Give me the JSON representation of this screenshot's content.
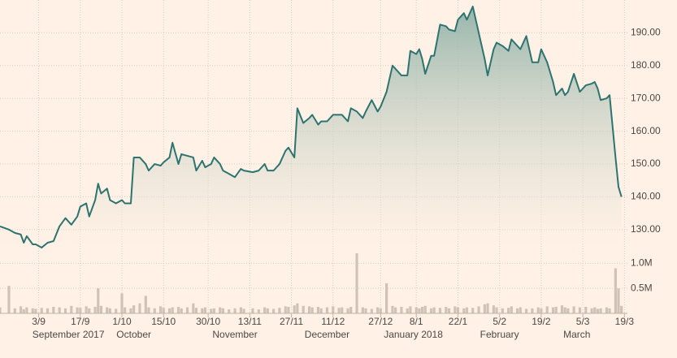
{
  "chart_data": {
    "type": "line",
    "x": [
      "2017-08-21",
      "2017-08-24",
      "2017-08-26",
      "2017-08-28",
      "2017-08-29",
      "2017-08-30",
      "2017-09-01",
      "2017-09-02",
      "2017-09-04",
      "2017-09-06",
      "2017-09-08",
      "2017-09-10",
      "2017-09-12",
      "2017-09-14",
      "2017-09-16",
      "2017-09-17",
      "2017-09-19",
      "2017-09-20",
      "2017-09-22",
      "2017-09-23",
      "2017-09-24",
      "2017-09-26",
      "2017-09-27",
      "2017-09-29",
      "2017-10-01",
      "2017-10-02",
      "2017-10-04",
      "2017-10-05",
      "2017-10-07",
      "2017-10-09",
      "2017-10-10",
      "2017-10-12",
      "2017-10-14",
      "2017-10-15",
      "2017-10-17",
      "2017-10-18",
      "2017-10-20",
      "2017-10-21",
      "2017-10-23",
      "2017-10-25",
      "2017-10-26",
      "2017-10-28",
      "2017-10-29",
      "2017-10-31",
      "2017-11-01",
      "2017-11-03",
      "2017-11-04",
      "2017-11-06",
      "2017-11-08",
      "2017-11-10",
      "2017-11-11",
      "2017-11-14",
      "2017-11-16",
      "2017-11-18",
      "2017-11-19",
      "2017-11-21",
      "2017-11-23",
      "2017-11-25",
      "2017-11-26",
      "2017-11-28",
      "2017-11-29",
      "2017-12-01",
      "2017-12-03",
      "2017-12-04",
      "2017-12-06",
      "2017-12-07",
      "2017-12-09",
      "2017-12-11",
      "2017-12-13",
      "2017-12-14",
      "2017-12-16",
      "2017-12-17",
      "2017-12-19",
      "2017-12-21",
      "2017-12-22",
      "2017-12-24",
      "2017-12-26",
      "2017-12-27",
      "2017-12-29",
      "2017-12-31",
      "2018-01-01",
      "2018-01-03",
      "2018-01-05",
      "2018-01-06",
      "2018-01-08",
      "2018-01-09",
      "2018-01-10",
      "2018-01-11",
      "2018-01-13",
      "2018-01-14",
      "2018-01-16",
      "2018-01-18",
      "2018-01-19",
      "2018-01-21",
      "2018-01-22",
      "2018-01-24",
      "2018-01-25",
      "2018-01-27",
      "2018-01-29",
      "2018-01-31",
      "2018-02-01",
      "2018-02-03",
      "2018-02-04",
      "2018-02-06",
      "2018-02-08",
      "2018-02-09",
      "2018-02-11",
      "2018-02-12",
      "2018-02-14",
      "2018-02-16",
      "2018-02-18",
      "2018-02-19",
      "2018-02-21",
      "2018-02-23",
      "2018-02-24",
      "2018-02-26",
      "2018-02-27",
      "2018-02-28",
      "2018-03-02",
      "2018-03-04",
      "2018-03-06",
      "2018-03-08",
      "2018-03-09",
      "2018-03-10",
      "2018-03-11",
      "2018-03-13",
      "2018-03-14",
      "2018-03-16",
      "2018-03-17",
      "2018-03-18"
    ],
    "series": [
      {
        "color": "#2d7370",
        "area": true,
        "values": [
          131,
          130,
          129,
          128.5,
          126,
          128,
          125.5,
          125.5,
          124.5,
          126,
          126.5,
          131,
          133.5,
          131.5,
          134,
          137,
          138,
          134,
          139,
          144,
          141,
          142.5,
          139,
          138,
          139,
          138,
          138,
          152,
          152,
          150,
          148,
          150,
          149.5,
          150.5,
          152,
          156.5,
          150,
          153,
          152.5,
          152,
          148,
          151,
          149,
          150,
          152,
          150,
          148,
          147,
          146,
          148.5,
          148,
          147.5,
          148,
          150,
          148,
          148,
          150,
          154,
          155,
          152,
          167,
          162.5,
          164,
          165,
          162,
          163,
          163,
          165,
          165,
          165,
          163,
          167,
          166,
          164,
          166,
          169.5,
          166,
          167.5,
          172,
          180,
          179,
          177,
          177,
          184.5,
          183.5,
          185,
          182,
          177.5,
          183,
          183,
          192.5,
          192,
          191,
          190.5,
          194,
          196,
          194,
          198,
          190,
          182,
          177,
          185,
          187,
          186,
          184.5,
          188,
          186,
          185,
          189,
          181,
          181,
          185,
          181,
          175,
          171,
          173,
          171,
          172,
          177.5,
          172,
          174,
          174.5,
          175,
          173,
          169.5,
          170,
          171,
          152,
          143,
          140
        ]
      },
      {
        "type": "bar",
        "axis": "y2",
        "color": "#cfc3b8",
        "values": [
          0.12,
          0.55,
          0.1,
          0.14,
          0.08,
          0.12,
          0.1,
          0.09,
          0.11,
          0.1,
          0.13,
          0.12,
          0.1,
          0.15,
          0.12,
          0.11,
          0.14,
          0.1,
          0.13,
          0.5,
          0.15,
          0.12,
          0.1,
          0.09,
          0.4,
          0.12,
          0.1,
          0.16,
          0.2,
          0.35,
          0.12,
          0.1,
          0.14,
          0.11,
          0.1,
          0.12,
          0.13,
          0.1,
          0.12,
          0.2,
          0.11,
          0.1,
          0.12,
          0.09,
          0.1,
          0.12,
          0.1,
          0.08,
          0.1,
          0.12,
          0.09,
          0.1,
          0.08,
          0.12,
          0.1,
          0.09,
          0.11,
          0.14,
          0.13,
          0.16,
          0.2,
          0.15,
          0.14,
          0.12,
          0.13,
          0.1,
          0.12,
          0.14,
          0.11,
          0.12,
          0.1,
          0.13,
          1.2,
          0.12,
          0.1,
          0.09,
          0.12,
          0.1,
          0.6,
          0.15,
          0.12,
          0.13,
          0.1,
          0.14,
          0.12,
          0.1,
          0.13,
          0.15,
          0.1,
          0.12,
          0.11,
          0.13,
          0.1,
          0.14,
          0.12,
          0.1,
          0.12,
          0.11,
          0.14,
          0.18,
          0.2,
          0.16,
          0.12,
          0.1,
          0.11,
          0.14,
          0.1,
          0.12,
          0.09,
          0.1,
          0.12,
          0.1,
          0.14,
          0.12,
          0.13,
          0.16,
          0.12,
          0.1,
          0.14,
          0.12,
          0.13,
          0.1,
          0.12,
          0.09,
          0.1,
          0.12,
          0.1,
          0.9,
          0.5,
          0.15
        ]
      }
    ],
    "xlim": [
      "2017-08-21",
      "2018-03-20"
    ],
    "xticks": [
      {
        "value": "2017-09-03",
        "label": "3/9"
      },
      {
        "value": "2017-09-17",
        "label": "17/9"
      },
      {
        "value": "2017-10-01",
        "label": "1/10"
      },
      {
        "value": "2017-10-15",
        "label": "15/10"
      },
      {
        "value": "2017-10-30",
        "label": "30/10"
      },
      {
        "value": "2017-11-13",
        "label": "13/11"
      },
      {
        "value": "2017-11-27",
        "label": "27/11"
      },
      {
        "value": "2017-12-11",
        "label": "11/12"
      },
      {
        "value": "2017-12-27",
        "label": "27/12"
      },
      {
        "value": "2018-01-08",
        "label": "8/1"
      },
      {
        "value": "2018-01-22",
        "label": "22/1"
      },
      {
        "value": "2018-02-05",
        "label": "5/2"
      },
      {
        "value": "2018-02-19",
        "label": "19/2"
      },
      {
        "value": "2018-03-05",
        "label": "5/3"
      },
      {
        "value": "2018-03-19",
        "label": "19/3"
      }
    ],
    "month_labels": [
      {
        "value": "2017-09-13",
        "label": "September 2017"
      },
      {
        "value": "2017-10-05",
        "label": "October"
      },
      {
        "value": "2017-11-08",
        "label": "November"
      },
      {
        "value": "2017-12-09",
        "label": "December"
      },
      {
        "value": "2018-01-07",
        "label": "January 2018"
      },
      {
        "value": "2018-02-05",
        "label": "February"
      },
      {
        "value": "2018-03-03",
        "label": "March"
      }
    ],
    "ylim": [
      126,
      200
    ],
    "yticks": [
      {
        "value": 130,
        "label": "130.00"
      },
      {
        "value": 140,
        "label": "140.00"
      },
      {
        "value": 150,
        "label": "150.00"
      },
      {
        "value": 160,
        "label": "160.00"
      },
      {
        "value": 170,
        "label": "170.00"
      },
      {
        "value": 180,
        "label": "180.00"
      },
      {
        "value": 190,
        "label": "190.00"
      }
    ],
    "y2lim": [
      0,
      1.2
    ],
    "y2ticks": [
      {
        "value": 0.5,
        "label": "0.5M"
      },
      {
        "value": 1,
        "label": "1.0M"
      }
    ],
    "grid": true
  }
}
